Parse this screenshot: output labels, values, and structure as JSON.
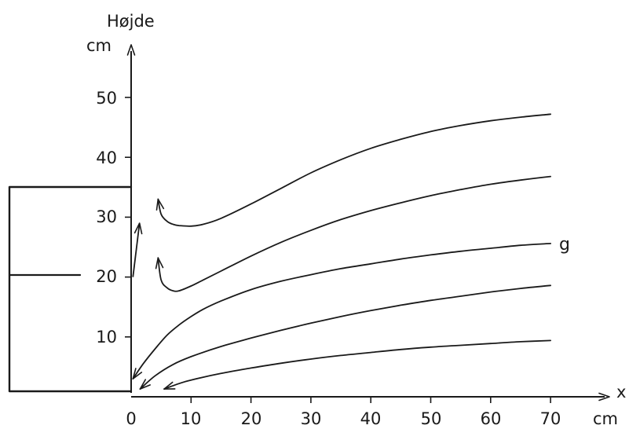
{
  "chart_data": {
    "type": "line",
    "ylabel": "Højde",
    "ylabel_unit": "cm",
    "xlabel": "x",
    "xlabel_unit": "cm",
    "xlim": [
      0,
      70
    ],
    "ylim": [
      0,
      55
    ],
    "x_ticks": [
      "0",
      "10",
      "20",
      "30",
      "40",
      "50",
      "60",
      "70"
    ],
    "y_ticks": [
      "10",
      "20",
      "30",
      "40",
      "50"
    ],
    "grid": false,
    "line_color": "#1a1a1a",
    "series": [
      {
        "x": [
          4.5,
          5,
          6,
          7,
          8,
          10,
          12,
          15,
          20,
          25,
          30,
          35,
          40,
          45,
          50,
          55,
          60,
          65,
          70
        ],
        "y": [
          33,
          30.5,
          29.3,
          28.8,
          28.6,
          28.5,
          28.8,
          29.8,
          32.2,
          34.8,
          37.4,
          39.6,
          41.5,
          43,
          44.3,
          45.3,
          46.1,
          46.7,
          47.2
        ]
      },
      {
        "x": [
          4.5,
          5,
          6,
          7,
          8,
          10,
          12,
          15,
          20,
          25,
          30,
          35,
          40,
          45,
          50,
          55,
          60,
          65,
          70
        ],
        "y": [
          23.2,
          19.5,
          18.2,
          17.7,
          17.7,
          18.5,
          19.5,
          21,
          23.5,
          25.8,
          27.8,
          29.6,
          31.1,
          32.4,
          33.6,
          34.6,
          35.5,
          36.2,
          36.8
        ]
      },
      {
        "label": "g",
        "x": [
          0.3,
          2,
          4,
          6,
          8,
          10,
          12,
          15,
          20,
          25,
          30,
          35,
          40,
          45,
          50,
          55,
          60,
          65,
          70
        ],
        "y": [
          3,
          5.5,
          8,
          10.3,
          12,
          13.4,
          14.6,
          16,
          17.9,
          19.3,
          20.4,
          21.4,
          22.2,
          23,
          23.7,
          24.3,
          24.8,
          25.3,
          25.6
        ]
      },
      {
        "x": [
          1.5,
          4,
          7,
          10,
          15,
          20,
          25,
          30,
          35,
          40,
          45,
          50,
          55,
          60,
          65,
          70
        ],
        "y": [
          1.3,
          3.5,
          5.4,
          6.7,
          8.4,
          9.8,
          11.1,
          12.3,
          13.4,
          14.4,
          15.3,
          16.1,
          16.8,
          17.5,
          18.1,
          18.6
        ]
      },
      {
        "x": [
          5.5,
          8,
          10,
          15,
          20,
          25,
          30,
          35,
          40,
          45,
          50,
          55,
          60,
          65,
          70
        ],
        "y": [
          1.3,
          2.2,
          2.8,
          3.9,
          4.8,
          5.6,
          6.3,
          6.9,
          7.4,
          7.9,
          8.3,
          8.6,
          8.9,
          9.2,
          9.4
        ]
      }
    ],
    "short_arrow": {
      "x": [
        0.3,
        1.4
      ],
      "y": [
        20,
        29
      ]
    }
  }
}
